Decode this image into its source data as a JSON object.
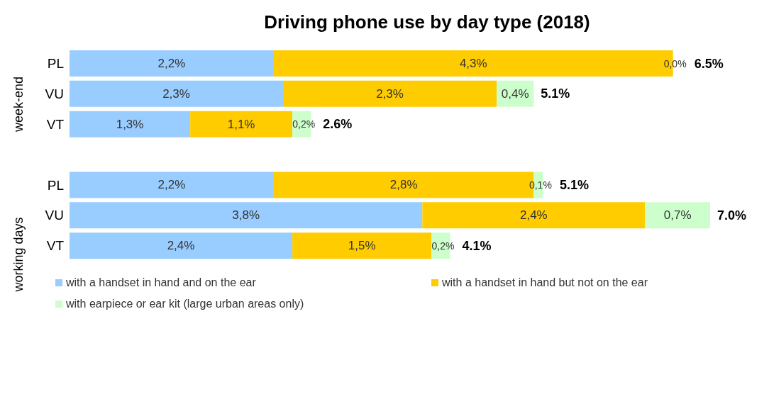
{
  "chart_data": {
    "type": "bar",
    "orientation": "horizontal",
    "stacked": true,
    "title": "Driving phone use by day type (2018)",
    "categories": [
      "PL",
      "VU",
      "VT",
      null,
      "PL",
      "VU",
      "VT"
    ],
    "series": [
      {
        "name": "with a handset in hand and on the ear",
        "color": "#99ccff",
        "values": [
          2.2,
          2.3,
          1.3,
          null,
          2.2,
          3.8,
          2.4
        ],
        "value_labels": [
          "2,2%",
          "2,3%",
          "1,3%",
          null,
          "2,2%",
          "3,8%",
          "2,4%"
        ]
      },
      {
        "name": "with a handset in hand but not on the ear",
        "color": "#ffcc00",
        "values": [
          4.3,
          2.3,
          1.1,
          null,
          2.8,
          2.4,
          1.5
        ],
        "value_labels": [
          "4,3%",
          "2,3%",
          "1,1%",
          null,
          "2,8%",
          "2,4%",
          "1,5%"
        ]
      },
      {
        "name": "with earpiece or ear kit (large urban areas only)",
        "color": "#ccffcc",
        "values": [
          0.0,
          0.4,
          0.2,
          null,
          0.1,
          0.7,
          0.2
        ],
        "value_labels": [
          "0,0%",
          "0,4%",
          "0,2%",
          null,
          "0,1%",
          "0,7%",
          "0,2%"
        ]
      }
    ],
    "totals": [
      "6.5%",
      "5.1%",
      "2.6%",
      null,
      "5.1%",
      "7.0%",
      "4.1%"
    ],
    "annotations": [
      "week-end",
      "working days"
    ],
    "tick_labels": "y",
    "grid": false,
    "legend": "bottom"
  }
}
